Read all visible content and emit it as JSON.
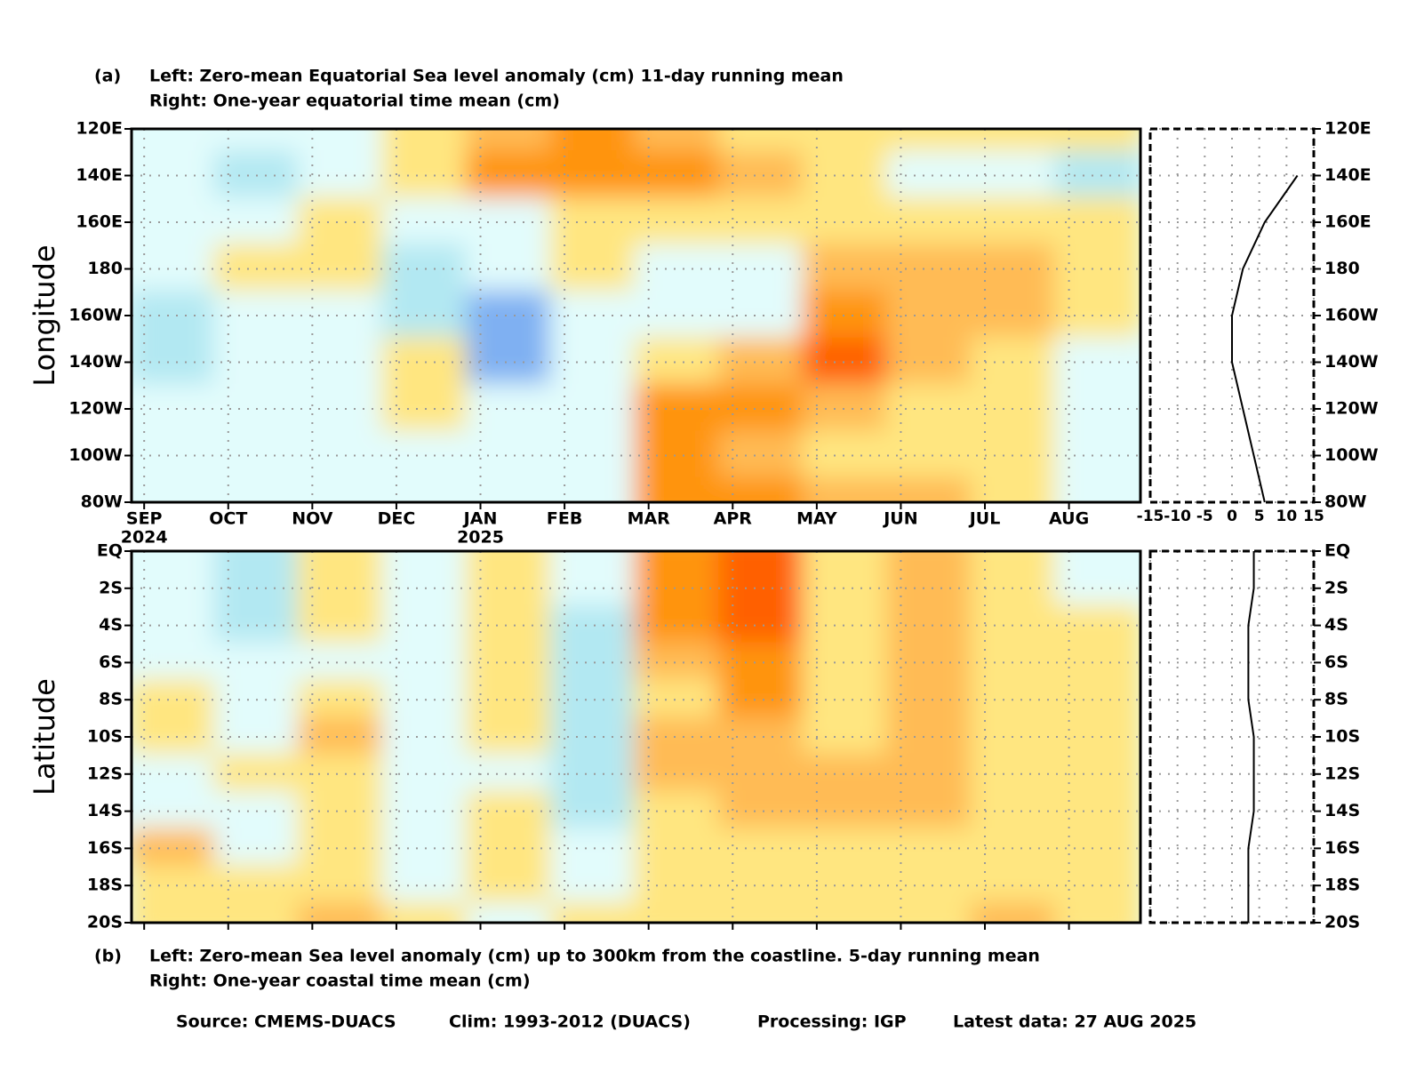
{
  "chart_data": [
    {
      "type": "heatmap",
      "panel_label": "(a)",
      "title": "Left: Zero-mean Equatorial Sea level anomaly (cm) 11-day running mean",
      "subtitle": "Right: One-year equatorial time mean (cm)",
      "ylabel": "Longitude",
      "rows": [
        "120E",
        "140E",
        "160E",
        "180",
        "160W",
        "140W",
        "120W",
        "100W",
        "80W"
      ],
      "categories": [
        "SEP",
        "OCT",
        "NOV",
        "DEC",
        "JAN",
        "FEB",
        "MAR",
        "APR",
        "MAY",
        "JUN",
        "JUL",
        "AUG"
      ],
      "year_labels": [
        {
          "category": "SEP",
          "label": "2024"
        },
        {
          "category": "JAN",
          "label": "2025"
        }
      ],
      "levels": [
        -9,
        -6,
        -3,
        0,
        3,
        6,
        9
      ],
      "colors": [
        "#4a6fdc",
        "#7fb0f2",
        "#b2e8f2",
        "#e2fcfc",
        "#ffe680",
        "#ffbb55",
        "#ff9410",
        "#ff6000"
      ],
      "values": [
        [
          -3,
          -3,
          -1,
          1,
          5,
          6,
          4,
          2,
          1,
          1,
          1,
          0
        ],
        [
          -3,
          -4,
          -1,
          1,
          6,
          8,
          6,
          4,
          1,
          -1,
          -3,
          -5
        ],
        [
          -1,
          -2,
          1,
          -1,
          -2,
          2,
          1,
          0,
          1,
          1,
          1,
          1
        ],
        [
          -3,
          0,
          1,
          -5,
          -2,
          0,
          -1,
          -1,
          5,
          4,
          3,
          1
        ],
        [
          -5,
          -3,
          -1,
          -6,
          -8,
          -1,
          -1,
          -1,
          7,
          5,
          5,
          1
        ],
        [
          -4,
          -2,
          -1,
          1,
          -7,
          -2,
          2,
          3,
          9,
          5,
          2,
          -2
        ],
        [
          -2,
          -1,
          -2,
          1,
          -1,
          -1,
          7,
          6,
          5,
          1,
          1,
          -2
        ],
        [
          -2,
          -1,
          -3,
          -2,
          -1,
          -1,
          6,
          5,
          2,
          1,
          1,
          -2
        ],
        [
          -3,
          -2,
          -2,
          -1,
          -1,
          -1,
          7,
          7,
          5,
          3,
          1,
          -1
        ]
      ]
    },
    {
      "type": "line",
      "rows": [
        "120E",
        "140E",
        "160E",
        "180",
        "160W",
        "140W",
        "120W",
        "100W",
        "80W"
      ],
      "values": [
        null,
        12,
        6,
        2,
        0,
        0,
        2,
        4,
        6
      ],
      "xlim": [
        -15,
        15
      ],
      "xticks": [
        -15,
        -10,
        -5,
        0,
        5,
        10,
        15
      ],
      "color": "#000000"
    },
    {
      "type": "heatmap",
      "panel_label": "(b)",
      "title": "Left: Zero-mean Sea level anomaly (cm) up to 300km from the coastline. 5-day running mean",
      "subtitle": "Right: One-year coastal time mean (cm)",
      "ylabel": "Latitude",
      "rows": [
        "EQ",
        "2S",
        "4S",
        "6S",
        "8S",
        "10S",
        "12S",
        "14S",
        "16S",
        "18S",
        "20S"
      ],
      "categories": [
        "SEP",
        "OCT",
        "NOV",
        "DEC",
        "JAN",
        "FEB",
        "MAR",
        "APR",
        "MAY",
        "JUN",
        "JUL",
        "AUG"
      ],
      "levels": [
        -9,
        -6,
        -3,
        0,
        3,
        6,
        9
      ],
      "colors": [
        "#4a6fdc",
        "#7fb0f2",
        "#b2e8f2",
        "#e2fcfc",
        "#ffe680",
        "#ffbb55",
        "#ff9410",
        "#ff6000"
      ],
      "values": [
        [
          -1,
          -4,
          1,
          -1,
          0,
          -1,
          7,
          9,
          2,
          4,
          1,
          -1
        ],
        [
          -1,
          -5,
          0,
          -1,
          1,
          -1,
          8,
          10,
          2,
          4,
          1,
          -1
        ],
        [
          -3,
          -5,
          1,
          -2,
          0,
          -5,
          8,
          9,
          1,
          4,
          2,
          1
        ],
        [
          -1,
          -2,
          -1,
          -1,
          1,
          -5,
          5,
          8,
          2,
          5,
          2,
          1
        ],
        [
          1,
          -2,
          2,
          -2,
          0,
          -6,
          2,
          7,
          2,
          5,
          1,
          1
        ],
        [
          1,
          -3,
          5,
          -2,
          1,
          -5,
          3,
          5,
          2,
          5,
          0,
          1
        ],
        [
          -2,
          1,
          2,
          -1,
          -2,
          -5,
          3,
          4,
          3,
          3,
          1,
          1
        ],
        [
          -1,
          -2,
          1,
          -3,
          1,
          -4,
          1,
          4,
          5,
          3,
          1,
          1
        ],
        [
          3,
          -2,
          1,
          -2,
          1,
          -3,
          1,
          2,
          1,
          1,
          1,
          1
        ],
        [
          1,
          1,
          2,
          -1,
          1,
          -1,
          0,
          1,
          1,
          1,
          1,
          1
        ],
        [
          1,
          1,
          5,
          1,
          -1,
          1,
          1,
          1,
          1,
          1,
          3,
          1
        ]
      ]
    },
    {
      "type": "line",
      "rows": [
        "EQ",
        "2S",
        "4S",
        "6S",
        "8S",
        "10S",
        "12S",
        "14S",
        "16S",
        "18S",
        "20S"
      ],
      "values": [
        4,
        4,
        3,
        3,
        3,
        4,
        4,
        4,
        3,
        3,
        3
      ],
      "xlim": [
        -15,
        15
      ],
      "xticks": [
        -15,
        -10,
        -5,
        0,
        5,
        10,
        15
      ],
      "color": "#000000"
    }
  ],
  "footer": [
    "Source: CMEMS-DUACS",
    "Clim: 1993-2012 (DUACS)",
    "Processing: IGP",
    "Latest data: 27 AUG 2025"
  ]
}
